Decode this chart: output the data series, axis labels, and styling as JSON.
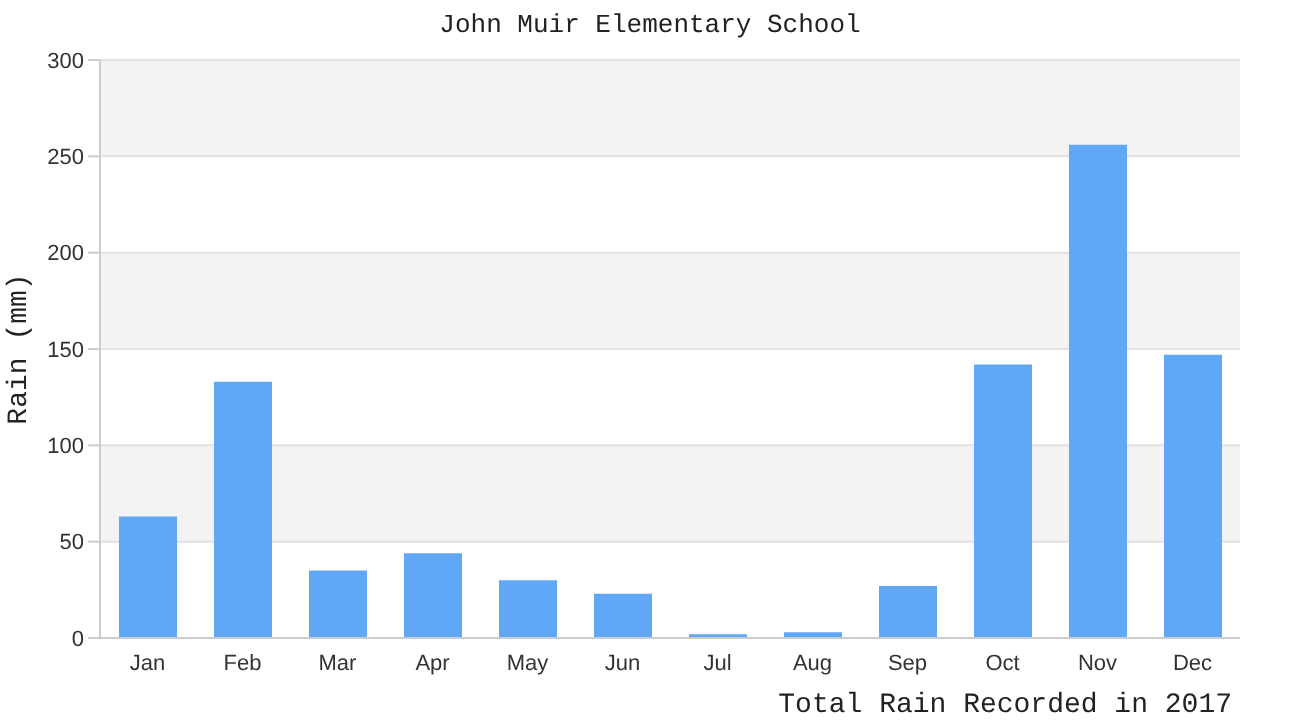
{
  "chart_data": {
    "type": "bar",
    "title": "John Muir Elementary School",
    "xlabel": "Total Rain Recorded in 2017",
    "ylabel": "Rain (mm)",
    "categories": [
      "Jan",
      "Feb",
      "Mar",
      "Apr",
      "May",
      "Jun",
      "Jul",
      "Aug",
      "Sep",
      "Oct",
      "Nov",
      "Dec"
    ],
    "values": [
      63,
      133,
      35,
      44,
      30,
      23,
      2,
      3,
      27,
      142,
      256,
      147
    ],
    "color": "#60a8f5",
    "ylim": [
      0,
      300
    ],
    "yticks": [
      0,
      50,
      100,
      150,
      200,
      250,
      300
    ],
    "grid": "y"
  }
}
